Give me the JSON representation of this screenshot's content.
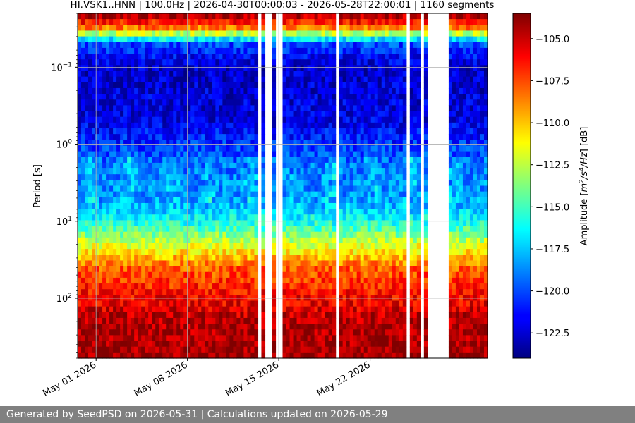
{
  "chart_data": {
    "type": "heatmap",
    "title": "HI.VSK1..HNN | 100.0Hz | 2026-04-30T00:00:03 - 2026-05-28T22:00:01 | 1160 segments",
    "ylabel": "Period [s]",
    "yscale": "log",
    "y_inverted": true,
    "ylim": [
      0.02,
      600
    ],
    "y_ticks": [
      {
        "value": 0.1,
        "base": "10",
        "exp": "−1"
      },
      {
        "value": 1,
        "base": "10",
        "exp": "0"
      },
      {
        "value": 10,
        "base": "10",
        "exp": "1"
      },
      {
        "value": 100,
        "base": "10",
        "exp": "2"
      }
    ],
    "xlim": [
      "2026-04-29T14:00",
      "2026-05-31T00:00"
    ],
    "x_ticks": [
      {
        "value": "2026-05-01",
        "label": "May 01 2026"
      },
      {
        "value": "2026-05-08",
        "label": "May 08 2026"
      },
      {
        "value": "2026-05-15",
        "label": "May 15 2026"
      },
      {
        "value": "2026-05-22",
        "label": "May 22 2026"
      }
    ],
    "grid": true,
    "data_gaps": [
      [
        "2026-05-13T07:00",
        "2026-05-13T13:00"
      ],
      [
        "2026-05-13T21:00",
        "2026-05-14T09:00"
      ],
      [
        "2026-05-14T20:00",
        "2026-05-15T10:00"
      ],
      [
        "2026-05-19T11:00",
        "2026-05-19T16:00"
      ],
      [
        "2026-05-21T10:00",
        "2026-05-21T15:00"
      ],
      [
        "2026-05-24T17:00",
        "2026-05-24T22:00"
      ],
      [
        "2026-05-25T22:00",
        "2026-05-26T06:00"
      ],
      [
        "2026-05-26T09:00",
        "2026-05-28T01:00"
      ]
    ],
    "colorbar": {
      "label": "Amplitude [m²/s⁴/Hz] [dB]",
      "range": [
        -124,
        -103.5
      ],
      "colormap": "jet",
      "ticks": [
        "−105.0",
        "−107.5",
        "−110.0",
        "−112.5",
        "−115.0",
        "−117.5",
        "−120.0",
        "−122.5"
      ]
    },
    "amplitude_profile_db": [
      {
        "period_s": 0.02,
        "db": -103.8
      },
      {
        "period_s": 0.03,
        "db": -108
      },
      {
        "period_s": 0.05,
        "db": -120
      },
      {
        "period_s": 0.1,
        "db": -122.5
      },
      {
        "period_s": 0.5,
        "db": -122
      },
      {
        "period_s": 2,
        "db": -119
      },
      {
        "period_s": 5,
        "db": -118.5
      },
      {
        "period_s": 10,
        "db": -116
      },
      {
        "period_s": 20,
        "db": -112
      },
      {
        "period_s": 40,
        "db": -108
      },
      {
        "period_s": 100,
        "db": -106
      },
      {
        "period_s": 200,
        "db": -104.5
      },
      {
        "period_s": 600,
        "db": -104
      }
    ]
  },
  "footer": {
    "text": "Generated by SeedPSD on 2026-05-31 | Calculations updated on 2026-05-29"
  }
}
